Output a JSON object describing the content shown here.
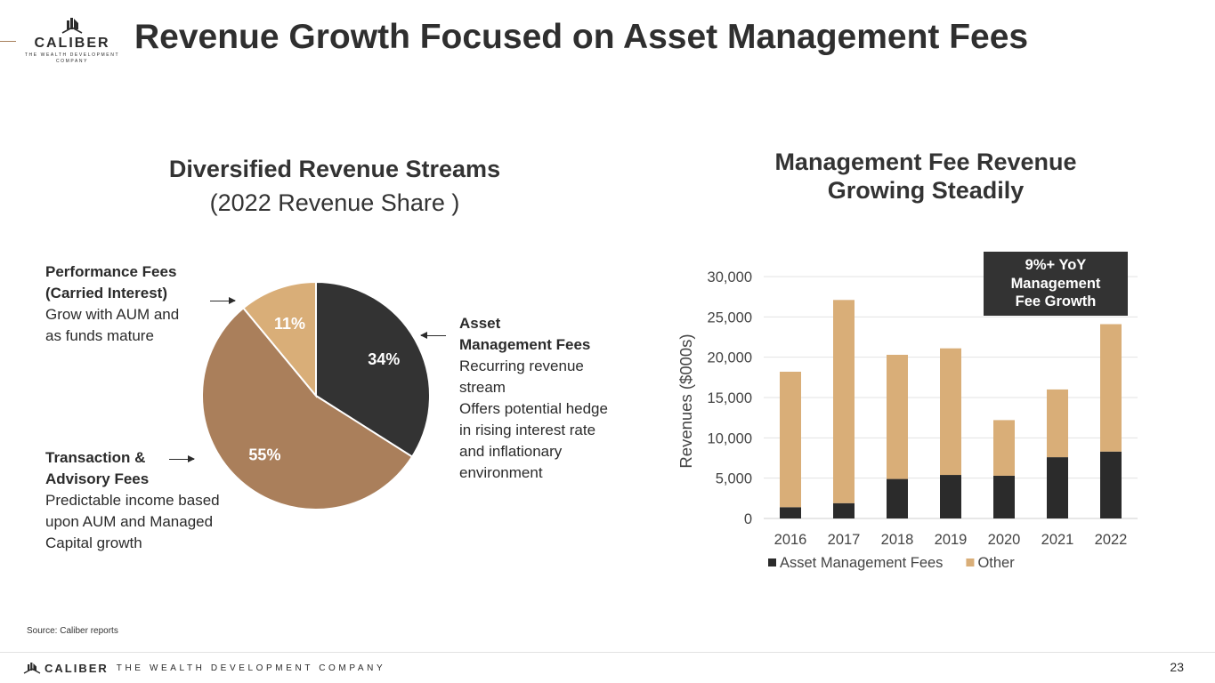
{
  "header": {
    "title": "Revenue Growth Focused on Asset Management Fees",
    "logo_word": "CALIBER",
    "logo_tagline_1": "THE WEALTH DEVELOPMENT",
    "logo_tagline_2": "COMPANY"
  },
  "left_panel": {
    "title": "Diversified Revenue Streams",
    "subtitle": "(2022 Revenue Share )"
  },
  "right_panel": {
    "title_line1": "Management Fee Revenue",
    "title_line2": "Growing Steadily",
    "callout_line1": "9%+ YoY",
    "callout_line2": "Management",
    "callout_line3": "Fee Growth"
  },
  "annotations": {
    "performance": {
      "heading1": "Performance Fees",
      "heading2": "(Carried Interest)",
      "line1": "Grow with AUM and",
      "line2": "as funds mature"
    },
    "transaction": {
      "heading1": "Transaction &",
      "heading2": "Advisory Fees",
      "line1": "Predictable income based",
      "line2": "upon AUM and Managed",
      "line3": "Capital growth"
    },
    "asset_mgmt": {
      "heading1": "Asset",
      "heading2": "Management Fees",
      "line1": "Recurring revenue",
      "line2": "stream",
      "line3": "Offers potential hedge",
      "line4": "in rising interest rate",
      "line5": "and inflationary",
      "line6": "environment"
    }
  },
  "footer": {
    "source": "Source: Caliber reports",
    "brand": "CALIBER",
    "tagline": "THE WEALTH DEVELOPMENT COMPANY",
    "page_number": "23"
  },
  "colors": {
    "dark": "#333333",
    "brown": "#aa7f5b",
    "tan": "#d9ae78",
    "white": "#ffffff"
  },
  "chart_data": [
    {
      "type": "pie",
      "title": "",
      "slices": [
        {
          "label": "Asset Management Fees",
          "value": 34,
          "display": "34%",
          "color": "#333333"
        },
        {
          "label": "Transaction & Advisory Fees",
          "value": 55,
          "display": "55%",
          "color": "#aa7f5b"
        },
        {
          "label": "Performance Fees (Carried Interest)",
          "value": 11,
          "display": "11%",
          "color": "#d9ae78"
        }
      ],
      "start": "12 o'clock, clockwise"
    },
    {
      "type": "bar",
      "stacked": true,
      "categories": [
        "2016",
        "2017",
        "2018",
        "2019",
        "2020",
        "2021",
        "2022"
      ],
      "series": [
        {
          "name": "Asset Management Fees",
          "color": "#2b2b2b",
          "values": [
            1400,
            1900,
            4900,
            5400,
            5300,
            7600,
            8300
          ]
        },
        {
          "name": "Other",
          "color": "#d9ae78",
          "values": [
            16800,
            25200,
            15400,
            15700,
            6900,
            8400,
            15800
          ]
        }
      ],
      "ylabel": "Revenues ($000s)",
      "xlabel": "",
      "ylim": [
        0,
        30000
      ],
      "yticks": [
        0,
        5000,
        10000,
        15000,
        20000,
        25000,
        30000
      ],
      "ytick_labels": [
        "0",
        "5,000",
        "10,000",
        "15,000",
        "20,000",
        "25,000",
        "30,000"
      ],
      "grid": true,
      "legend": "bottom"
    }
  ]
}
